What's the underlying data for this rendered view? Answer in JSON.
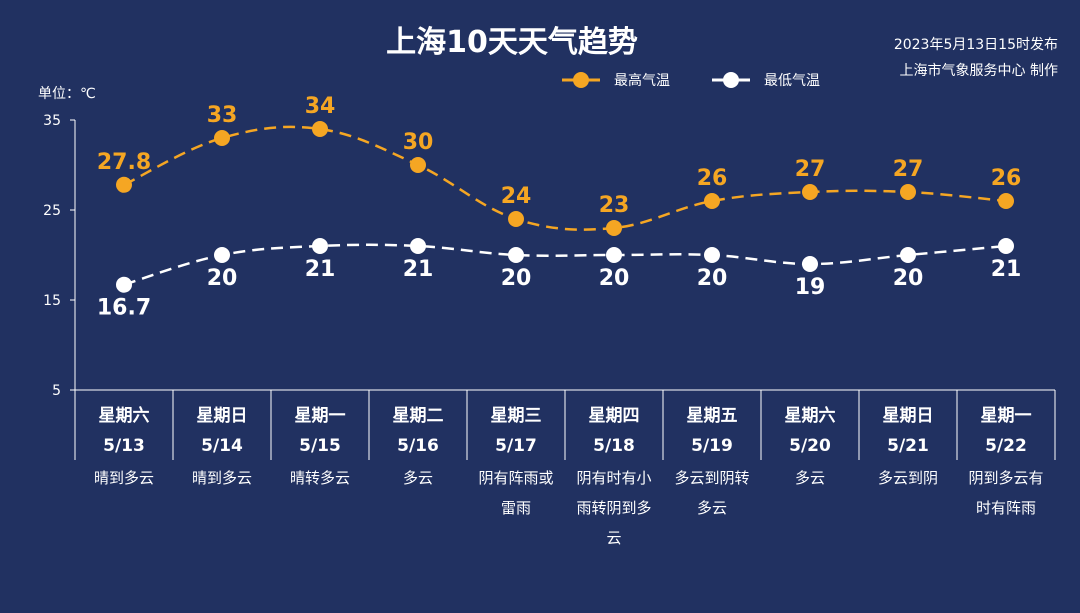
{
  "title": "上海10天天气趋势",
  "publish_time": "2023年5月13日15时发布",
  "publisher": "上海市气象服务中心 制作",
  "colors": {
    "background": "#213161",
    "high": "#f5a623",
    "low": "#ffffff"
  },
  "chart_data": {
    "type": "line",
    "ylabel": "单位：℃",
    "ylim": [
      5,
      35
    ],
    "yticks": [
      5,
      15,
      25,
      35
    ],
    "legend_position": "top-center",
    "grid": false,
    "categories": [
      {
        "day": "星期六",
        "date": "5/13",
        "weather": [
          "晴到多云"
        ]
      },
      {
        "day": "星期日",
        "date": "5/14",
        "weather": [
          "晴到多云"
        ]
      },
      {
        "day": "星期一",
        "date": "5/15",
        "weather": [
          "晴转多云"
        ]
      },
      {
        "day": "星期二",
        "date": "5/16",
        "weather": [
          "多云"
        ]
      },
      {
        "day": "星期三",
        "date": "5/17",
        "weather": [
          "阴有阵雨或",
          "雷雨"
        ]
      },
      {
        "day": "星期四",
        "date": "5/18",
        "weather": [
          "阴有时有小",
          "雨转阴到多",
          "云"
        ]
      },
      {
        "day": "星期五",
        "date": "5/19",
        "weather": [
          "多云到阴转",
          "多云"
        ]
      },
      {
        "day": "星期六",
        "date": "5/20",
        "weather": [
          "多云"
        ]
      },
      {
        "day": "星期日",
        "date": "5/21",
        "weather": [
          "多云到阴"
        ]
      },
      {
        "day": "星期一",
        "date": "5/22",
        "weather": [
          "阴到多云有",
          "时有阵雨"
        ]
      }
    ],
    "series": [
      {
        "name": "最高气温",
        "color": "#f5a623",
        "values": [
          27.8,
          33,
          34,
          30,
          24,
          23,
          26,
          27,
          27,
          26
        ],
        "labels": [
          "27.8",
          "33",
          "34",
          "30",
          "24",
          "23",
          "26",
          "27",
          "27",
          "26"
        ]
      },
      {
        "name": "最低气温",
        "color": "#ffffff",
        "values": [
          16.7,
          20,
          21,
          21,
          20,
          20,
          20,
          19,
          20,
          21
        ],
        "labels": [
          "16.7",
          "20",
          "21",
          "21",
          "20",
          "20",
          "20",
          "19",
          "20",
          "21"
        ]
      }
    ]
  }
}
